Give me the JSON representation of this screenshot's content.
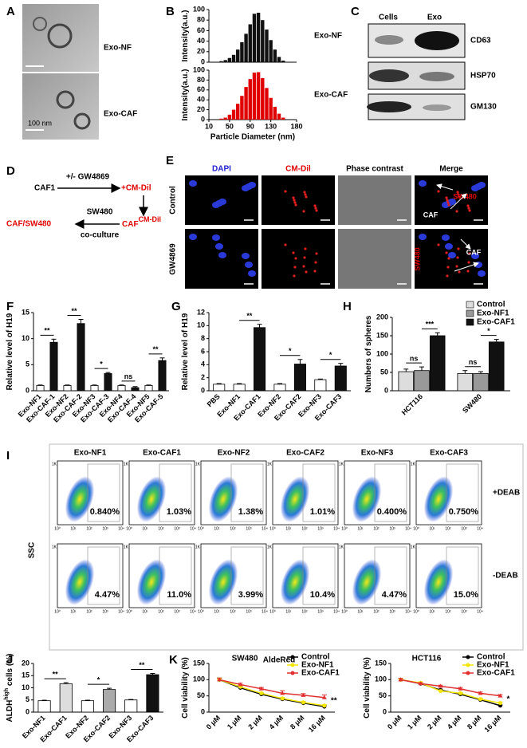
{
  "panel_labels": [
    "A",
    "B",
    "C",
    "D",
    "E",
    "F",
    "G",
    "H",
    "I",
    "J",
    "K"
  ],
  "panel_a": {
    "labels": [
      "Exo-NF",
      "Exo-CAF"
    ],
    "scale_bar": "100 nm"
  },
  "panel_c": {
    "columns": [
      "Cells",
      "Exo"
    ],
    "rows": [
      "CD63",
      "HSP70",
      "GM130"
    ]
  },
  "panel_d": {
    "start": "CAF1",
    "treatment": "+/- GW4869",
    "label": "+CM-Dil",
    "cells": "SW480",
    "step": "co-culture",
    "result": "CAF/SW480",
    "labeled": "CAF",
    "labeled_sup": "CM-Dil"
  },
  "panel_e": {
    "columns": [
      "DAPI",
      "CM-Dil",
      "Phase contrast",
      "Merge"
    ],
    "rows": [
      "Control",
      "GW4869"
    ],
    "annotations": [
      "SW480",
      "CAF",
      "CAF",
      "SW480"
    ]
  },
  "panel_i": {
    "columns": [
      "Exo-NF1",
      "Exo-CAF1",
      "Exo-NF2",
      "Exo-CAF2",
      "Exo-NF3",
      "Exo-CAF3"
    ],
    "rows": [
      "+DEAB",
      "-DEAB"
    ],
    "percents": [
      [
        "0.840%",
        "1.03%",
        "1.38%",
        "1.01%",
        "0.400%",
        "0.750%"
      ],
      [
        "4.47%",
        "11.0%",
        "3.99%",
        "10.4%",
        "4.47%",
        "15.0%"
      ]
    ],
    "y_label": "SSC",
    "x_label": "AldeRed",
    "y_tick": "1K",
    "x_ticks": [
      "10⁰",
      "10¹",
      "10²",
      "10³",
      "10⁴"
    ]
  },
  "chart_data": [
    {
      "type": "bar",
      "y_label": "Intensity(a.u.)",
      "legend": "right",
      "x": [
        34,
        42,
        50,
        58,
        66,
        74,
        82,
        90,
        98,
        106,
        114,
        122,
        130,
        138,
        146,
        154
      ],
      "series": [
        {
          "name": "Exo-NF",
          "color": "#111111",
          "values": [
            2,
            4,
            8,
            14,
            24,
            38,
            54,
            72,
            92,
            94,
            80,
            62,
            42,
            24,
            10,
            3
          ]
        }
      ],
      "xlim": [
        10,
        180
      ],
      "ylim": [
        0,
        100
      ],
      "yticks": [
        0,
        20,
        40,
        60,
        80,
        100
      ]
    },
    {
      "type": "bar",
      "y_label": "Intensity(a.u.)",
      "x_label": "Particle Diameter (nm)",
      "legend": "right",
      "x": [
        34,
        42,
        50,
        58,
        66,
        74,
        82,
        90,
        98,
        106,
        114,
        122,
        130,
        138,
        146,
        154
      ],
      "series": [
        {
          "name": "Exo-CAF",
          "color": "#e00000",
          "values": [
            2,
            4,
            10,
            20,
            32,
            48,
            66,
            82,
            95,
            96,
            84,
            64,
            44,
            26,
            12,
            4
          ]
        }
      ],
      "xlim": [
        10,
        180
      ],
      "xticks": [
        10,
        50,
        90,
        130,
        180
      ],
      "ylim": [
        0,
        100
      ],
      "yticks": [
        0,
        20,
        40,
        60,
        80,
        100
      ]
    },
    {
      "type": "bar",
      "y_label": "Relative level of H19",
      "categories": [
        "Exo-NF1",
        "Exo-CAF-1",
        "Exo-NF2",
        "Exo-CAF-2",
        "Exo-NF3",
        "Exo-CAF-3",
        "Exo-NF4",
        "Exo-CAF-4",
        "Exo-NF5",
        "Exo-CAF-5"
      ],
      "values": [
        1,
        9.3,
        1,
        12.9,
        1,
        3.3,
        1,
        0.6,
        1,
        5.8
      ],
      "errors": [
        0.1,
        0.6,
        0.1,
        0.8,
        0.1,
        0.2,
        0.1,
        0.2,
        0.1,
        0.5
      ],
      "colors": [
        "#ffffff",
        "#111111",
        "#ffffff",
        "#111111",
        "#ffffff",
        "#111111",
        "#ffffff",
        "#111111",
        "#ffffff",
        "#111111"
      ],
      "ylim": [
        0,
        15
      ],
      "yticks": [
        0,
        5,
        10,
        15
      ],
      "annotations": [
        "**",
        "**",
        "*",
        "ns",
        "**"
      ]
    },
    {
      "type": "bar",
      "y_label": "Relative level of H19",
      "categories": [
        "PBS",
        "Exo-NF1",
        "Exo-CAF1",
        "Exo-NF2",
        "Exo-CAF2",
        "Exo-NF3",
        "Exo-CAF3"
      ],
      "values": [
        1,
        1,
        9.7,
        1,
        4.1,
        1.7,
        3.8
      ],
      "errors": [
        0.1,
        0.1,
        0.5,
        0.1,
        0.7,
        0.1,
        0.4
      ],
      "colors": [
        "#ffffff",
        "#ffffff",
        "#111111",
        "#ffffff",
        "#111111",
        "#ffffff",
        "#111111"
      ],
      "ylim": [
        0,
        12
      ],
      "yticks": [
        0,
        2,
        4,
        6,
        8,
        10,
        12
      ],
      "annotations": [
        "**",
        "*",
        "*"
      ]
    },
    {
      "type": "bar",
      "y_label": "Numbers of spheres",
      "legend": "top-right",
      "categories": [
        "HCT116",
        "SW480"
      ],
      "series": [
        {
          "name": "Control",
          "color": "#dddddd",
          "values": [
            52,
            47
          ],
          "errors": [
            7,
            8
          ]
        },
        {
          "name": "Exo-NF1",
          "color": "#999999",
          "values": [
            55,
            47
          ],
          "errors": [
            10,
            5
          ]
        },
        {
          "name": "Exo-CAF1",
          "color": "#111111",
          "values": [
            150,
            133
          ],
          "errors": [
            8,
            7
          ]
        }
      ],
      "ylim": [
        0,
        200
      ],
      "yticks": [
        0,
        50,
        100,
        150,
        200
      ],
      "annotations": [
        "ns",
        "***",
        "ns",
        "*"
      ]
    },
    {
      "type": "bar",
      "y_label": "ALDH",
      "y_label_sup": "high",
      "y_label_tail": " cells (%)",
      "categories": [
        "Exo-NF1",
        "Exo-CAF1",
        "Exo-NF2",
        "Exo-CAF2",
        "Exo-NF3",
        "Exo-CAF3"
      ],
      "values": [
        4.7,
        11.7,
        4.7,
        9.3,
        5,
        15.4
      ],
      "errors": [
        0.2,
        0.4,
        0.2,
        0.5,
        0.2,
        0.5
      ],
      "colors": [
        "#ffffff",
        "#dddddd",
        "#ffffff",
        "#aaaaaa",
        "#ffffff",
        "#111111"
      ],
      "ylim": [
        0,
        20
      ],
      "yticks": [
        0,
        5,
        10,
        15,
        20
      ],
      "annotations": [
        "**",
        "*",
        "**"
      ]
    },
    {
      "type": "line",
      "title": "SW480",
      "y_label": "Cell viability (%)",
      "legend": "top-right",
      "categories": [
        "0 μM",
        "1 μM",
        "2 μM",
        "4 μM",
        "8 μM",
        "16 μM"
      ],
      "series": [
        {
          "name": "Control",
          "color": "#000000",
          "values": [
            100,
            75,
            55,
            40,
            28,
            17
          ],
          "errors": [
            5,
            3,
            3,
            3,
            3,
            3
          ]
        },
        {
          "name": "Exo-NF1",
          "color": "#f2e600",
          "values": [
            100,
            78,
            58,
            42,
            30,
            20
          ],
          "errors": [
            5,
            3,
            3,
            3,
            3,
            3
          ]
        },
        {
          "name": "Exo-CAF1",
          "color": "#e03030",
          "values": [
            100,
            85,
            72,
            58,
            52,
            45
          ],
          "errors": [
            5,
            4,
            4,
            8,
            5,
            8
          ]
        }
      ],
      "ylim": [
        0,
        150
      ],
      "yticks": [
        0,
        50,
        100,
        150
      ],
      "annotations": [
        "**"
      ]
    },
    {
      "type": "line",
      "title": "HCT116",
      "y_label": "Cell viability (%)",
      "legend": "top-right",
      "categories": [
        "0 μM",
        "1 μM",
        "2 μM",
        "4 μM",
        "8 μM",
        "16 μM"
      ],
      "series": [
        {
          "name": "Control",
          "color": "#000000",
          "values": [
            100,
            88,
            68,
            55,
            38,
            20
          ],
          "errors": [
            4,
            3,
            3,
            3,
            3,
            2
          ]
        },
        {
          "name": "Exo-NF1",
          "color": "#f2e600",
          "values": [
            100,
            90,
            65,
            58,
            40,
            28
          ],
          "errors": [
            4,
            3,
            3,
            3,
            3,
            3
          ]
        },
        {
          "name": "Exo-CAF1",
          "color": "#e03030",
          "values": [
            100,
            88,
            80,
            72,
            58,
            50
          ],
          "errors": [
            4,
            3,
            3,
            4,
            4,
            4
          ]
        }
      ],
      "ylim": [
        0,
        150
      ],
      "yticks": [
        0,
        50,
        100,
        150
      ],
      "annotations": [
        "*"
      ]
    }
  ]
}
